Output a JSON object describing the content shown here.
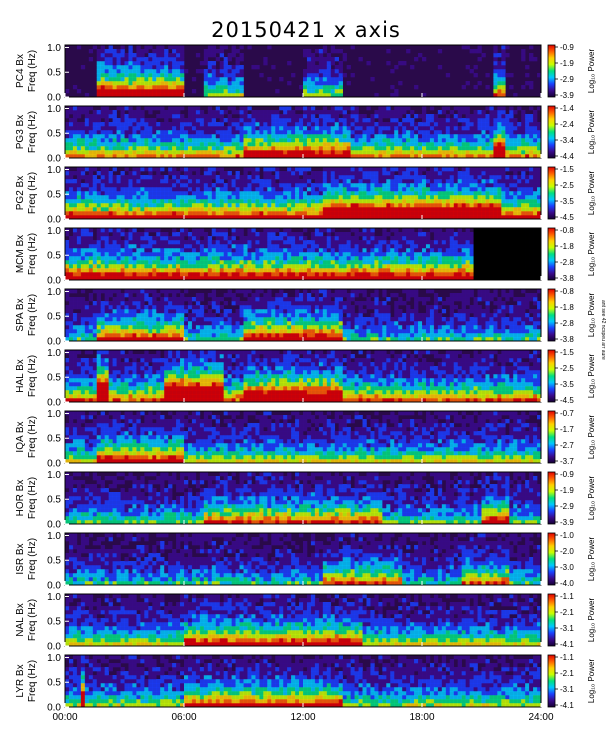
{
  "title": "20150421 x axis",
  "side_note": "ant see 42 ncspeu arr aure",
  "colorbar_label": "Log₁₀ Power",
  "colors": {
    "background_spectrum": "#2a0a4a",
    "mcm_blank": "#000000",
    "colormap": [
      "#140033",
      "#3a0a8c",
      "#1a40ff",
      "#00c8ff",
      "#00e080",
      "#c8ff00",
      "#ffd000",
      "#ff6000",
      "#e00000"
    ]
  },
  "chart_data": [
    {
      "type": "heatmap",
      "station": "PC4",
      "ylabel_line1": "PC4  Bx",
      "ylabel_line2": "Freq (Hz)",
      "yticks": [
        "1.0",
        "0.5",
        "0.0"
      ],
      "ylim": [
        0,
        1.05
      ],
      "cbar_ticks": [
        "-0.9",
        "-1.9",
        "-2.9",
        "-3.9"
      ],
      "clim": [
        -3.9,
        -0.9
      ]
    },
    {
      "type": "heatmap",
      "station": "PG3",
      "ylabel_line1": "PG3  Bx",
      "ylabel_line2": "Freq (Hz)",
      "yticks": [
        "1.0",
        "0.5",
        "0.0"
      ],
      "ylim": [
        0,
        1.05
      ],
      "cbar_ticks": [
        "-1.4",
        "-2.4",
        "-3.4",
        "-4.4"
      ],
      "clim": [
        -4.4,
        -1.4
      ]
    },
    {
      "type": "heatmap",
      "station": "PG2",
      "ylabel_line1": "PG2  Bx",
      "ylabel_line2": "Freq (Hz)",
      "yticks": [
        "1.0",
        "0.5",
        "0.0"
      ],
      "ylim": [
        0,
        1.05
      ],
      "cbar_ticks": [
        "-1.5",
        "-2.5",
        "-3.5",
        "-4.5"
      ],
      "clim": [
        -4.5,
        -1.5
      ]
    },
    {
      "type": "heatmap",
      "station": "MCM",
      "ylabel_line1": "MCM  Bx",
      "ylabel_line2": "Freq (Hz)",
      "yticks": [
        "1.0",
        "0.5",
        "0.0"
      ],
      "ylim": [
        0,
        1.05
      ],
      "cbar_ticks": [
        "-0.8",
        "-1.8",
        "-2.8",
        "-3.8"
      ],
      "clim": [
        -3.8,
        -0.8
      ]
    },
    {
      "type": "heatmap",
      "station": "SPA",
      "ylabel_line1": "SPA  Bx",
      "ylabel_line2": "Freq (Hz)",
      "yticks": [
        "1.0",
        "0.5",
        "0.0"
      ],
      "ylim": [
        0,
        1.05
      ],
      "cbar_ticks": [
        "-0.8",
        "-1.8",
        "-2.8",
        "-3.8"
      ],
      "clim": [
        -3.8,
        -0.8
      ]
    },
    {
      "type": "heatmap",
      "station": "HAL",
      "ylabel_line1": "HAL  Bx",
      "ylabel_line2": "Freq (Hz)",
      "yticks": [
        "1.0",
        "0.5",
        "0.0"
      ],
      "ylim": [
        0,
        1.05
      ],
      "cbar_ticks": [
        "-1.5",
        "-2.5",
        "-3.5",
        "-4.5"
      ],
      "clim": [
        -4.5,
        -1.5
      ]
    },
    {
      "type": "heatmap",
      "station": "IQA",
      "ylabel_line1": "IQA  Bx",
      "ylabel_line2": "Freq (Hz)",
      "yticks": [
        "1.0",
        "0.5",
        "0.0"
      ],
      "ylim": [
        0,
        1.05
      ],
      "cbar_ticks": [
        "-0.7",
        "-1.7",
        "-2.7",
        "-3.7"
      ],
      "clim": [
        -3.7,
        -0.7
      ]
    },
    {
      "type": "heatmap",
      "station": "HOR",
      "ylabel_line1": "HOR  Bx",
      "ylabel_line2": "Freq (Hz)",
      "yticks": [
        "1.0",
        "0.5",
        "0.0"
      ],
      "ylim": [
        0,
        1.05
      ],
      "cbar_ticks": [
        "-0.9",
        "-1.9",
        "-2.9",
        "-3.9"
      ],
      "clim": [
        -3.9,
        -0.9
      ]
    },
    {
      "type": "heatmap",
      "station": "ISR",
      "ylabel_line1": "ISR  Bx",
      "ylabel_line2": "Freq (Hz)",
      "yticks": [
        "1.0",
        "0.5",
        "0.0"
      ],
      "ylim": [
        0,
        1.05
      ],
      "cbar_ticks": [
        "-1.0",
        "-2.0",
        "-3.0",
        "-4.0"
      ],
      "clim": [
        -4.0,
        -1.0
      ]
    },
    {
      "type": "heatmap",
      "station": "NAL",
      "ylabel_line1": "NAL  Bx",
      "ylabel_line2": "Freq (Hz)",
      "yticks": [
        "1.0",
        "0.5",
        "0.0"
      ],
      "ylim": [
        0,
        1.05
      ],
      "cbar_ticks": [
        "-1.1",
        "-2.1",
        "-3.1",
        "-4.1"
      ],
      "clim": [
        -4.1,
        -1.1
      ]
    },
    {
      "type": "heatmap",
      "station": "LYR",
      "ylabel_line1": "LYR  Bx",
      "ylabel_line2": "Freq (Hz)",
      "yticks": [
        "1.0",
        "0.5",
        "0.0"
      ],
      "ylim": [
        0,
        1.05
      ],
      "cbar_ticks": [
        "-1.1",
        "-2.1",
        "-3.1",
        "-4.1"
      ],
      "clim": [
        -4.1,
        -1.1
      ]
    }
  ],
  "x_axis": {
    "ticks": [
      "00:00",
      "06:00",
      "12:00",
      "18:00",
      "24:00"
    ],
    "range_hours": [
      0,
      24
    ]
  }
}
